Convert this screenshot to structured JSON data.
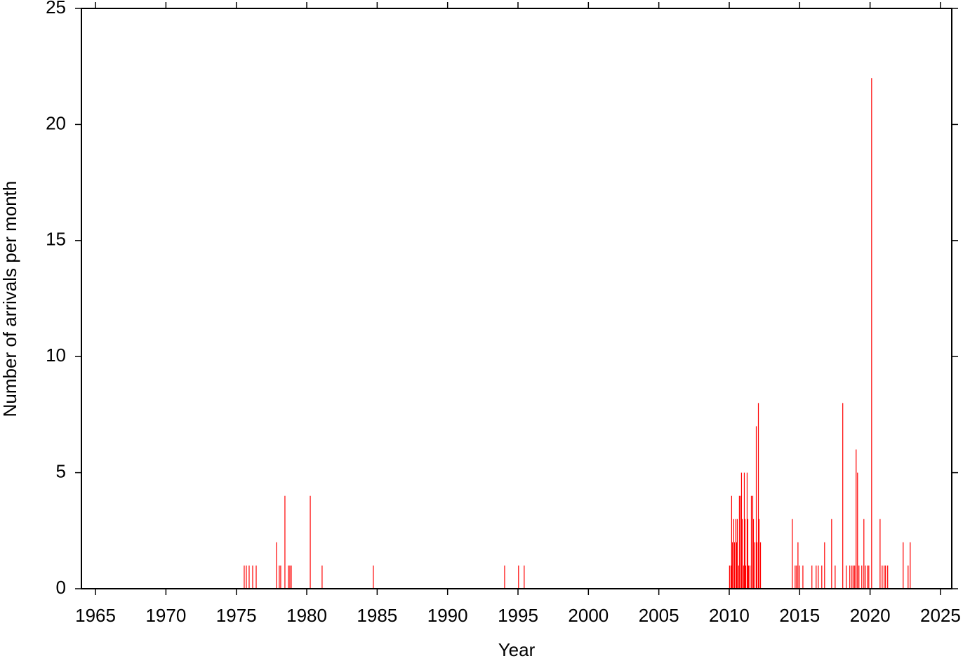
{
  "chart_data": {
    "type": "bar",
    "x_label": "Year",
    "y_label": "Number of arrivals per month",
    "color": "#ff0000",
    "xlim": [
      1964,
      2025.8
    ],
    "ylim": [
      0,
      25
    ],
    "xticks": [
      1965,
      1970,
      1975,
      1980,
      1985,
      1990,
      1995,
      2000,
      2005,
      2010,
      2015,
      2020,
      2025
    ],
    "yticks": [
      0,
      5,
      10,
      15,
      20,
      25
    ],
    "x": [
      1975.56,
      1975.71,
      1975.91,
      1976.16,
      1976.41,
      1977.85,
      1978.05,
      1978.15,
      1978.45,
      1978.7,
      1978.8,
      1978.9,
      1980.25,
      1981.09,
      1984.73,
      1994.05,
      1995.04,
      1995.44,
      2010.02,
      2010.12,
      2010.17,
      2010.22,
      2010.32,
      2010.37,
      2010.47,
      2010.52,
      2010.57,
      2010.67,
      2010.72,
      2010.82,
      2010.87,
      2010.92,
      2011.02,
      2011.07,
      2011.12,
      2011.17,
      2011.27,
      2011.32,
      2011.37,
      2011.47,
      2011.57,
      2011.67,
      2011.72,
      2011.82,
      2011.92,
      2011.97,
      2012.07,
      2012.12,
      2012.22,
      2014.48,
      2014.68,
      2014.78,
      2014.88,
      2014.98,
      2015.23,
      2015.87,
      2016.17,
      2016.32,
      2016.57,
      2016.77,
      2017.27,
      2017.52,
      2018.06,
      2018.31,
      2018.56,
      2018.71,
      2018.81,
      2018.91,
      2019.01,
      2019.11,
      2019.21,
      2019.41,
      2019.56,
      2019.66,
      2019.81,
      2019.91,
      2020.11,
      2020.71,
      2020.86,
      2021.0,
      2021.1,
      2021.25,
      2022.35,
      2022.7,
      2022.85
    ],
    "values": [
      1,
      1,
      1,
      1,
      1,
      2,
      1,
      1,
      4,
      1,
      1,
      1,
      4,
      1,
      1,
      1,
      1,
      1,
      1,
      1,
      4,
      2,
      3,
      2,
      3,
      2,
      3,
      1,
      4,
      4,
      5,
      3,
      1,
      5,
      3,
      1,
      5,
      3,
      1,
      1,
      4,
      4,
      3,
      2,
      7,
      2,
      8,
      3,
      2,
      3,
      1,
      1,
      2,
      1,
      1,
      1,
      1,
      1,
      1,
      2,
      3,
      1,
      8,
      1,
      1,
      1,
      1,
      1,
      6,
      5,
      1,
      1,
      3,
      1,
      1,
      1,
      22,
      3,
      1,
      1,
      1,
      1,
      2,
      1,
      2
    ]
  }
}
